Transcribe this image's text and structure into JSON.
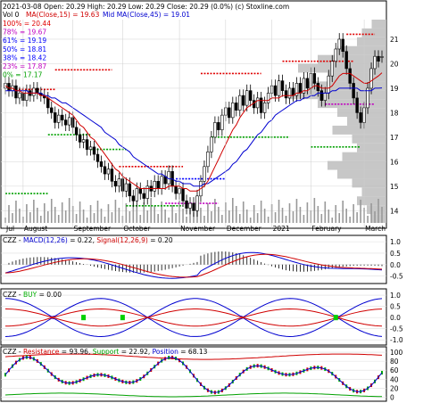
{
  "header": {
    "symbol": "CZZ",
    "quote": "2021-03-08 Open: 20.29  High: 20.29  Low: 20.29  Close: 20.29 (0.0%)  (c) Stoxline.com",
    "vol": "Vol 0",
    "ma15_label": "MA(Close,15) = 19.63",
    "ma45_label": "Mid MA(Close,45) = 19.01"
  },
  "fib_levels": [
    {
      "label": "100% = 20.44",
      "color": "#e00000"
    },
    {
      "label": "78% = 19.67",
      "color": "#c000c0"
    },
    {
      "label": "61% = 19.19",
      "color": "#0000ff"
    },
    {
      "label": "50% = 18.81",
      "color": "#0000ff"
    },
    {
      "label": "38% = 18.42",
      "color": "#0000ff"
    },
    {
      "label": "23% = 17.87",
      "color": "#c000c0"
    },
    {
      "label": "0% = 17.17",
      "color": "#00a000"
    }
  ],
  "macd": {
    "label_prefix": "CZZ - ",
    "label_name": "MACD(12,26)",
    "label_value": " = 0.22, ",
    "label_signal": "Signal(12,26,9)",
    "label_signal_value": " = 0.20"
  },
  "buy": {
    "label_prefix": "CZZ - ",
    "label_name": "BUY",
    "label_value": " = 0.00"
  },
  "resist": {
    "label_prefix": "CZZ - ",
    "label_name": "Resistance",
    "label_value": " = 93.96, ",
    "label_support": "Support",
    "label_support_value": " = 22.92, ",
    "label_position": "Position",
    "label_position_value": " = 68.13"
  },
  "chart_data": {
    "type": "candlestick",
    "price_axis": {
      "ticks": [
        14,
        15,
        16,
        17,
        18,
        19,
        20,
        21
      ],
      "ylim": [
        13.5,
        21.8
      ]
    },
    "x_labels": [
      "Jul",
      "August",
      "September",
      "October",
      "November",
      "December",
      "2021",
      "February",
      "March"
    ],
    "close": [
      19.2,
      18.9,
      19.1,
      18.6,
      18.8,
      18.5,
      18.9,
      18.7,
      19.0,
      18.8,
      18.7,
      18.6,
      18.2,
      18.0,
      17.6,
      17.9,
      17.7,
      17.5,
      17.8,
      17.4,
      17.1,
      16.8,
      16.9,
      16.5,
      16.6,
      16.3,
      16.0,
      15.8,
      15.5,
      15.7,
      15.2,
      15.0,
      15.3,
      14.8,
      15.1,
      14.6,
      14.4,
      14.9,
      14.7,
      14.5,
      15.0,
      14.8,
      15.2,
      14.9,
      15.4,
      15.1,
      15.6,
      15.0,
      14.7,
      14.9,
      14.4,
      14.1,
      14.3,
      14.0,
      14.6,
      15.2,
      15.8,
      16.4,
      17.0,
      17.6,
      17.3,
      17.9,
      18.2,
      17.8,
      18.4,
      18.1,
      18.7,
      18.3,
      18.9,
      18.5,
      18.2,
      18.6,
      18.0,
      18.4,
      18.8,
      19.1,
      18.7,
      19.3,
      18.9,
      18.6,
      19.0,
      18.7,
      19.2,
      18.8,
      19.4,
      19.0,
      19.6,
      19.2,
      18.9,
      18.5,
      18.8,
      19.5,
      20.1,
      20.6,
      21.0,
      20.5,
      19.8,
      19.2,
      18.6,
      18.0,
      17.6,
      18.2,
      19.0,
      19.8,
      20.3,
      20.1,
      20.29
    ],
    "open": [
      19.0,
      19.2,
      18.9,
      19.1,
      18.6,
      18.8,
      18.5,
      18.9,
      18.7,
      19.0,
      18.8,
      18.7,
      18.6,
      18.2,
      18.0,
      17.6,
      17.9,
      17.7,
      17.5,
      17.8,
      17.4,
      17.1,
      16.8,
      16.9,
      16.5,
      16.6,
      16.3,
      16.0,
      15.8,
      15.5,
      15.7,
      15.2,
      15.0,
      15.3,
      14.8,
      15.1,
      14.6,
      14.4,
      14.9,
      14.7,
      14.5,
      15.0,
      14.8,
      15.2,
      14.9,
      15.4,
      15.1,
      15.6,
      15.0,
      14.7,
      14.9,
      14.4,
      14.1,
      14.3,
      14.0,
      14.6,
      15.2,
      15.8,
      16.4,
      17.0,
      17.6,
      17.3,
      17.9,
      18.2,
      17.8,
      18.4,
      18.1,
      18.7,
      18.3,
      18.9,
      18.5,
      18.2,
      18.6,
      18.0,
      18.4,
      18.8,
      19.1,
      18.7,
      19.3,
      18.9,
      18.6,
      19.0,
      18.7,
      19.2,
      18.8,
      19.4,
      19.0,
      19.6,
      19.2,
      18.9,
      18.5,
      18.8,
      19.5,
      20.1,
      20.6,
      21.0,
      20.5,
      19.8,
      19.2,
      18.6,
      18.0,
      17.6,
      18.2,
      19.0,
      19.8,
      20.3,
      20.29
    ],
    "ma15": [
      19.1,
      19.0,
      19.0,
      18.9,
      18.9,
      18.8,
      18.8,
      18.8,
      18.8,
      18.8,
      18.7,
      18.7,
      18.6,
      18.5,
      18.4,
      18.3,
      18.2,
      18.1,
      18.0,
      17.9,
      17.7,
      17.5,
      17.4,
      17.2,
      17.0,
      16.9,
      16.7,
      16.5,
      16.3,
      16.1,
      15.9,
      15.7,
      15.6,
      15.4,
      15.3,
      15.2,
      15.1,
      15.0,
      14.9,
      14.9,
      14.9,
      14.9,
      14.9,
      14.9,
      14.9,
      14.9,
      15.0,
      15.0,
      15.0,
      15.0,
      14.9,
      14.9,
      14.8,
      14.8,
      14.8,
      14.9,
      15.0,
      15.2,
      15.5,
      15.8,
      16.1,
      16.4,
      16.7,
      17.0,
      17.3,
      17.5,
      17.8,
      18.0,
      18.2,
      18.3,
      18.4,
      18.5,
      18.5,
      18.5,
      18.5,
      18.6,
      18.6,
      18.6,
      18.7,
      18.7,
      18.7,
      18.7,
      18.8,
      18.8,
      18.9,
      18.9,
      19.0,
      19.1,
      19.1,
      19.0,
      19.0,
      19.0,
      19.1,
      19.3,
      19.5,
      19.6,
      19.6,
      19.6,
      19.5,
      19.4,
      19.3,
      19.2,
      19.2,
      19.3,
      19.4,
      19.5,
      19.63
    ],
    "ma45": [
      18.9,
      18.9,
      18.9,
      18.9,
      18.9,
      18.9,
      18.9,
      18.8,
      18.8,
      18.8,
      18.8,
      18.7,
      18.7,
      18.6,
      18.6,
      18.5,
      18.4,
      18.4,
      18.3,
      18.2,
      18.1,
      18.0,
      17.9,
      17.8,
      17.7,
      17.6,
      17.5,
      17.4,
      17.2,
      17.1,
      17.0,
      16.9,
      16.7,
      16.6,
      16.5,
      16.4,
      16.2,
      16.1,
      16.0,
      15.9,
      15.8,
      15.7,
      15.6,
      15.5,
      15.5,
      15.4,
      15.3,
      15.3,
      15.2,
      15.2,
      15.1,
      15.1,
      15.1,
      15.0,
      15.0,
      15.0,
      15.1,
      15.1,
      15.2,
      15.3,
      15.4,
      15.5,
      15.6,
      15.7,
      15.9,
      16.0,
      16.2,
      16.4,
      16.5,
      16.7,
      16.9,
      17.1,
      17.2,
      17.4,
      17.6,
      17.7,
      17.9,
      18.0,
      18.1,
      18.2,
      18.3,
      18.4,
      18.5,
      18.5,
      18.6,
      18.6,
      18.7,
      18.7,
      18.8,
      18.8,
      18.8,
      18.8,
      18.9,
      18.9,
      19.0,
      19.0,
      19.0,
      19.0,
      19.0,
      19.0,
      18.9,
      18.9,
      18.9,
      18.9,
      19.0,
      19.0,
      19.01
    ],
    "macd_axis": {
      "ticks": [
        -0.5,
        0.0,
        0.5,
        1.0
      ],
      "ylim": [
        -0.75,
        1.2
      ]
    },
    "buy_axis": {
      "ticks": [
        -1.0,
        -0.5,
        0.0,
        0.5,
        1.0
      ],
      "ylim": [
        -1.15,
        1.2
      ]
    },
    "resist_axis": {
      "ticks": [
        0,
        20,
        40,
        60,
        80,
        100
      ],
      "ylim": [
        -5,
        108
      ]
    }
  }
}
